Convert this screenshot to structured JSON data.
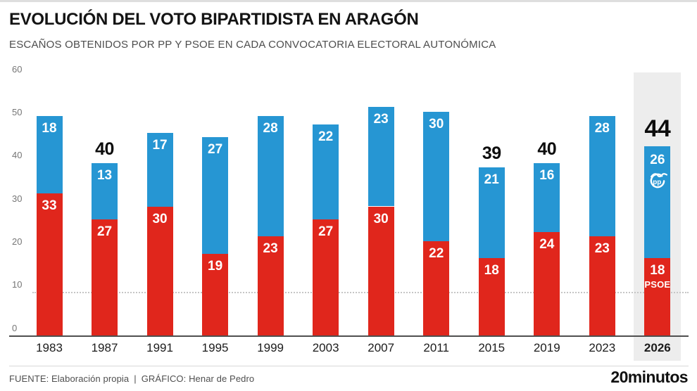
{
  "header": {
    "title": "EVOLUCIÓN DEL VOTO BIPARTIDISTA EN ARAGÓN",
    "subtitle": "ESCAÑOS OBTENIDOS POR PP Y PSOE EN CADA CONVOCATORIA ELECTORAL AUTONÓMICA"
  },
  "footer": {
    "fuente": "FUENTE: Elaboración propia",
    "pipe": "|",
    "grafico": "GRÁFICO: Henar de Pedro",
    "brand": "20minutos"
  },
  "colors": {
    "psoe_red": "#e0261c",
    "pp_blue": "#2696d3",
    "highlight_band": "#ededed",
    "total_label": "#0d0d0d"
  },
  "chart_data": {
    "type": "bar",
    "subtype": "stacked",
    "categories": [
      "1983",
      "1987",
      "1991",
      "1995",
      "1999",
      "2003",
      "2007",
      "2011",
      "2015",
      "2019",
      "2023",
      "2026"
    ],
    "series": [
      {
        "name": "PSOE",
        "color": "#e0261c",
        "position": "bottom",
        "values": [
          33,
          27,
          30,
          19,
          23,
          27,
          30,
          22,
          18,
          24,
          23,
          18
        ]
      },
      {
        "name": "PP",
        "color": "#2696d3",
        "position": "top",
        "values": [
          18,
          13,
          17,
          27,
          28,
          22,
          23,
          30,
          21,
          16,
          28,
          26
        ]
      }
    ],
    "total_labels": [
      null,
      "40",
      null,
      null,
      null,
      null,
      null,
      null,
      "39",
      "40",
      null,
      "44"
    ],
    "big_total_category": "2026",
    "highlight_category": "2026",
    "in_bar_branding": {
      "category": "2026",
      "pp_logo": "PP",
      "psoe_label": "PSOE"
    },
    "ylim": [
      0,
      60
    ],
    "yticks": [
      "0",
      "10",
      "20",
      "30",
      "40",
      "50",
      "60"
    ],
    "dotted_gridline_at": 10,
    "grid": "off",
    "legend": "none"
  }
}
